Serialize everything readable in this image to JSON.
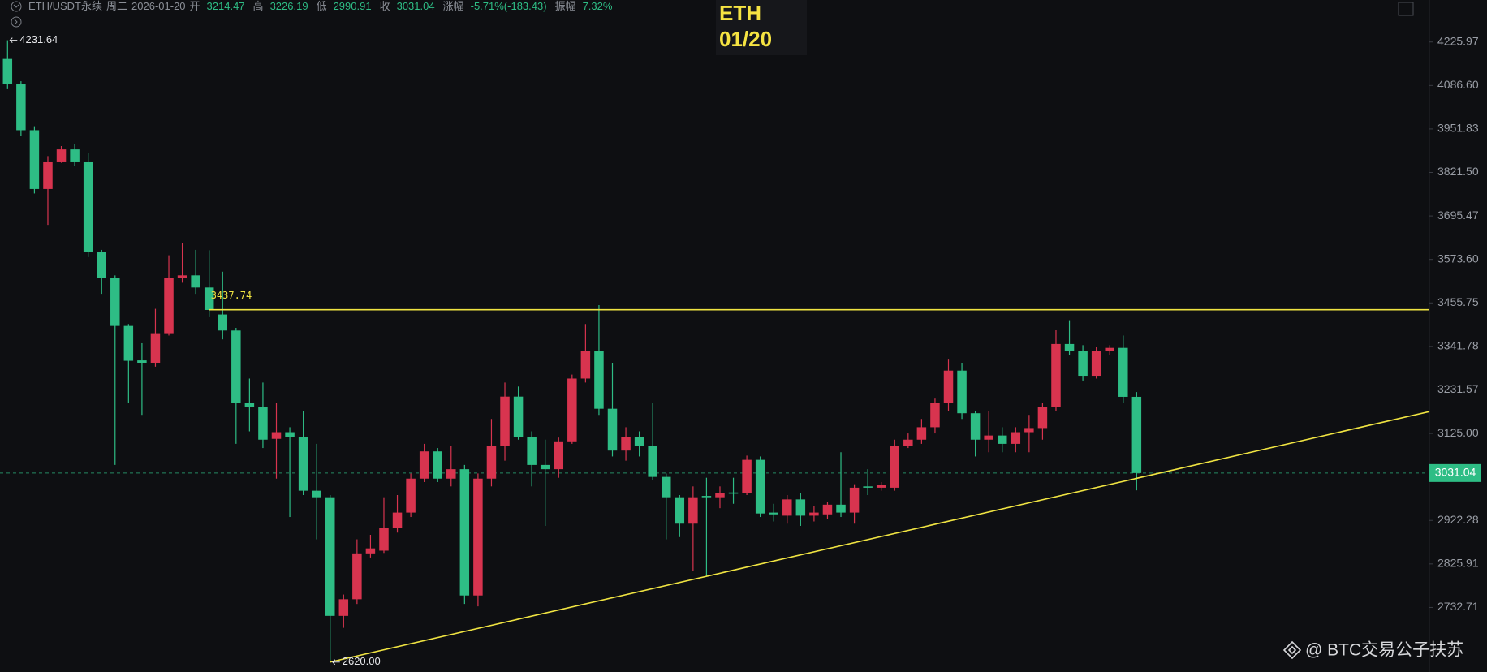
{
  "header": {
    "symbol": "ETH/USDT永续",
    "weekday": "周二",
    "date": "2026-01-20",
    "fields": [
      {
        "label": "开",
        "value": "3214.47"
      },
      {
        "label": "高",
        "value": "3226.19"
      },
      {
        "label": "低",
        "value": "2990.91"
      },
      {
        "label": "收",
        "value": "3031.04"
      },
      {
        "label": "涨幅",
        "value": "-5.71%(-183.43)"
      },
      {
        "label": "振幅",
        "value": "7.32%"
      }
    ]
  },
  "watermark": "@ BTC交易公子扶苏",
  "chart_data": {
    "type": "candlestick",
    "title": "ETH",
    "subtitle": "01/20",
    "up_color": "#d8344f",
    "down_color": "#2ebd85",
    "log": true,
    "open": [
      4171,
      4092,
      3948,
      3773,
      3854,
      3890,
      3854,
      3594,
      3523,
      3395,
      3306,
      3300,
      3376,
      3523,
      3530,
      3497,
      3425,
      3383,
      3200,
      3190,
      3112,
      3128,
      3117,
      2990,
      2975,
      2715,
      2750,
      2849,
      2855,
      2905,
      2940,
      3018,
      3082,
      3018,
      3040,
      2758,
      3018,
      3095,
      3215,
      3117,
      3050,
      3040,
      3106,
      3260,
      3331,
      3185,
      3084,
      3117,
      3095,
      3022,
      2975,
      2915,
      2978,
      2975,
      2986,
      2985,
      3062,
      2940,
      2933,
      2970,
      2933,
      2936,
      2958,
      2940,
      3000,
      2997,
      2997,
      3095,
      3110,
      3140,
      3200,
      3280,
      3174,
      3110,
      3120,
      3100,
      3128,
      3138,
      3190,
      3348,
      3331,
      3267,
      3331,
      3338,
      3214.47
    ],
    "high": [
      4231.64,
      4100,
      3960,
      3870,
      3900,
      3905,
      3880,
      3600,
      3530,
      3400,
      3350,
      3440,
      3585,
      3620,
      3600,
      3599,
      3540,
      3390,
      3260,
      3250,
      3200,
      3140,
      3180,
      3100,
      2980,
      2760,
      2880,
      2890,
      2975,
      2980,
      3030,
      3100,
      3090,
      3095,
      3050,
      3030,
      3160,
      3250,
      3240,
      3130,
      3110,
      3115,
      3270,
      3400,
      3450,
      3300,
      3140,
      3130,
      3200,
      3030,
      2980,
      3000,
      3020,
      3000,
      3020,
      3072,
      3070,
      2960,
      2980,
      2985,
      2955,
      2965,
      3080,
      3005,
      3040,
      3010,
      3110,
      3125,
      3160,
      3210,
      3310,
      3300,
      3180,
      3180,
      3140,
      3140,
      3170,
      3200,
      3385,
      3410,
      3345,
      3340,
      3345,
      3370,
      3226.19
    ],
    "low": [
      4075,
      3930,
      3760,
      3670,
      3850,
      3840,
      3580,
      3480,
      3050,
      3200,
      3170,
      3290,
      3370,
      3510,
      3480,
      3420,
      3360,
      3100,
      3130,
      3090,
      3018,
      2930,
      2980,
      2880,
      2620,
      2690,
      2740,
      2840,
      2850,
      2895,
      2930,
      3010,
      3010,
      3000,
      2740,
      2735,
      3000,
      3060,
      3110,
      3000,
      2910,
      3020,
      3100,
      3250,
      3170,
      3070,
      3060,
      3070,
      3015,
      2880,
      2885,
      2810,
      2800,
      2950,
      2960,
      2980,
      2930,
      2920,
      2915,
      2910,
      2920,
      2925,
      2930,
      2915,
      2980,
      2990,
      2990,
      3090,
      3100,
      3125,
      3180,
      3160,
      3070,
      3080,
      3080,
      3080,
      3080,
      3110,
      3180,
      3320,
      3255,
      3260,
      3320,
      3200,
      2990.91
    ],
    "close": [
      4092,
      3948,
      3773,
      3854,
      3890,
      3854,
      3594,
      3523,
      3395,
      3305,
      3300,
      3376,
      3523,
      3530,
      3497,
      3437,
      3383,
      3200,
      3190,
      3110,
      3128,
      3117,
      2990,
      2975,
      2715,
      2750,
      2849,
      2860,
      2905,
      2940,
      3018,
      3082,
      3018,
      3040,
      2758,
      3018,
      3095,
      3215,
      3117,
      3050,
      3040,
      3106,
      3260,
      3331,
      3185,
      3084,
      3117,
      3095,
      3022,
      2975,
      2915,
      2975,
      2975,
      2985,
      2983,
      3062,
      2938,
      2936,
      2970,
      2933,
      2940,
      2958,
      2940,
      2997,
      2997,
      3003,
      3095,
      3110,
      3140,
      3200,
      3280,
      3174,
      3110,
      3120,
      3100,
      3128,
      3138,
      3190,
      3348,
      3331,
      3267,
      3331,
      3338,
      3214.47,
      3031.04
    ],
    "ylim": [
      2600,
      4365
    ],
    "yticks": [
      4225.97,
      {
        "value": 4086.6,
        "label": "4086.60"
      },
      3951.83,
      {
        "value": 3821.5,
        "label": "3821.50"
      },
      3695.47,
      {
        "value": 3573.6,
        "label": "3573.60"
      },
      3455.75,
      3341.78,
      3231.57,
      {
        "value": 3125,
        "label": "3125.00"
      },
      2922.28,
      2825.91,
      2732.71
    ],
    "high_label": 4231.64,
    "low_label": {
      "value": 2620,
      "label": "2620.00"
    },
    "hline": 3437.74,
    "hline_color": "#f0e442",
    "trendline": [
      2620,
      3178
    ],
    "last_price": 3031.04
  }
}
